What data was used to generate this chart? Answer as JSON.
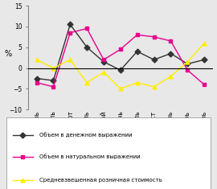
{
  "months": [
    "Январь",
    "Февраль",
    "Март",
    "Апрель",
    "Май",
    "Июнь",
    "Июль",
    "Август",
    "Сентябрь",
    "Октябрь",
    "Ноябрь"
  ],
  "денежный": [
    -2.5,
    -3.0,
    10.5,
    5.0,
    1.5,
    -0.5,
    4.0,
    2.0,
    3.5,
    1.0,
    2.0
  ],
  "натуральный": [
    -3.5,
    -4.5,
    8.5,
    9.5,
    2.0,
    4.5,
    8.0,
    7.5,
    6.5,
    -0.5,
    -4.0
  ],
  "стоимость": [
    2.0,
    0.0,
    2.0,
    -3.5,
    -1.0,
    -5.0,
    -3.5,
    -4.5,
    -2.0,
    1.5,
    6.0
  ],
  "color_denezh": "#333333",
  "color_natur": "#e8008c",
  "color_stoimost": "#ffee00",
  "marker_denezh": "D",
  "marker_natur": "s",
  "marker_stoimost": "^",
  "ylim": [
    -10,
    15
  ],
  "yticks": [
    -10,
    -5,
    0,
    5,
    10,
    15
  ],
  "ylabel": "%",
  "legend_denezh": "Объем в денежном выражении",
  "legend_natur": "Объем в натуральном выражении",
  "legend_stoimost": "Средневзвешенная розничная стоимость",
  "bg_color": "#e8e8e8",
  "legend_fontsize": 5.0,
  "tick_fontsize": 5.5,
  "ylabel_fontsize": 7
}
